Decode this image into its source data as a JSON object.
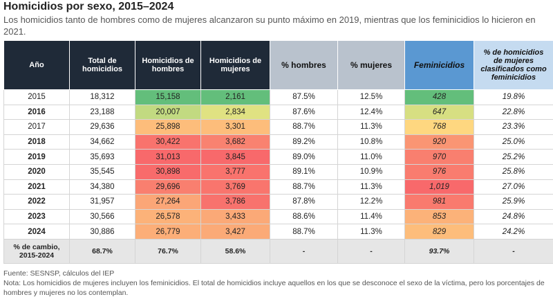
{
  "header": {
    "title": "Homicidios por sexo, 2015–2024",
    "subtitle": "Los homicidios tanto de hombres como de mujeres alcanzaron su punto máximo en 2019, mientras que los feminicidios lo hicieron en 2021."
  },
  "table": {
    "columns": [
      "Año",
      "Total de homicidios",
      "Homicidios de hombres",
      "Homicidios de mujeres",
      "% hombres",
      "% mujeres",
      "Feminicidios",
      "% de homicidios de mujeres clasificados como feminicidios"
    ],
    "rows": [
      [
        "2015",
        "18,312",
        "15,158",
        "2,161",
        "87.5%",
        "12.5%",
        "428",
        "19.8%"
      ],
      [
        "2016",
        "23,188",
        "20,007",
        "2,834",
        "87.6%",
        "12.4%",
        "647",
        "22.8%"
      ],
      [
        "2017",
        "29,636",
        "25,898",
        "3,301",
        "88.7%",
        "11.3%",
        "768",
        "23.3%"
      ],
      [
        "2018",
        "34,662",
        "30,422",
        "3,682",
        "89.2%",
        "10.8%",
        "920",
        "25.0%"
      ],
      [
        "2019",
        "35,693",
        "31,013",
        "3,845",
        "89.0%",
        "11.0%",
        "970",
        "25.2%"
      ],
      [
        "2020",
        "35,545",
        "30,898",
        "3,777",
        "89.1%",
        "10.9%",
        "976",
        "25.8%"
      ],
      [
        "2021",
        "34,380",
        "29,696",
        "3,769",
        "88.7%",
        "11.3%",
        "1,019",
        "27.0%"
      ],
      [
        "2022",
        "31,957",
        "27,264",
        "3,786",
        "87.8%",
        "12.2%",
        "981",
        "25.9%"
      ],
      [
        "2023",
        "30,566",
        "26,578",
        "3,433",
        "88.6%",
        "11.4%",
        "853",
        "24.8%"
      ],
      [
        "2024",
        "30,886",
        "26,779",
        "3,427",
        "88.7%",
        "11.3%",
        "829",
        "24.2%"
      ]
    ],
    "footer_row": [
      "% de cambio, 2015-2024",
      "68.7%",
      "76.7%",
      "58.6%",
      "-",
      "-",
      "93.7%",
      "-"
    ]
  },
  "notes": {
    "source": "Fuente: SESNSP, cálculos del IEP",
    "note": "Nota: Los homicidios de mujeres incluyen los feminicidios. El total de homicidios incluye aquellos en los que se desconoce el sexo de la víctima, pero los porcentajes de hombres y mujeres no los contemplan."
  }
}
